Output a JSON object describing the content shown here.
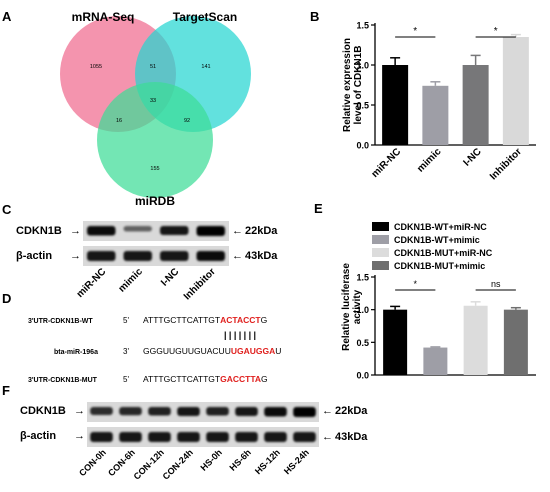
{
  "panels": {
    "A": {
      "label": "A",
      "sets": [
        {
          "name": "mRNA-Seq",
          "color": "#f06b8f"
        },
        {
          "name": "TargetScan",
          "color": "#25d6d1"
        },
        {
          "name": "miRDB",
          "color": "#3ddc97"
        }
      ],
      "counts": {
        "mrna_only": "1055",
        "mrna_target": "51",
        "target_only": "141",
        "all_three": "33",
        "mrna_mirdb": "16",
        "target_mirdb": "92",
        "mirdb_only": "155"
      }
    },
    "B": {
      "label": "B",
      "sig1": "*",
      "sig2": "*",
      "tick_values": [
        "0.0",
        "0.5",
        "1.0",
        "1.5"
      ]
    },
    "C": {
      "label": "C",
      "row1": "CDKN1B",
      "row2": "β-actin",
      "size1": "22kDa",
      "size2": "43kDa",
      "lanes": [
        "miR-NC",
        "mimic",
        "I-NC",
        "Inhibitor"
      ],
      "band_intensity_row1": [
        0.95,
        0.55,
        0.9,
        1.0
      ],
      "band_intensity_row2": [
        0.9,
        0.9,
        0.9,
        0.95
      ]
    },
    "D": {
      "label": "D",
      "wt_name": "3'UTR-CDKN1B-WT",
      "wt_dir": "5'",
      "wt_seq": "ATTTGCTTCATTGT",
      "wt_seed": "ACTACCT",
      "wt_end": "G",
      "pairing": "|||||||",
      "mir_name": "bta-miR-196a",
      "mir_dir": "3'",
      "mir_seq": "GGGUUGUUGUACUU",
      "mir_seed": "UGAUGGA",
      "mir_end": "U",
      "mut_name": "3'UTR-CDKN1B-MUT",
      "mut_dir": "5'",
      "mut_seq": "ATTTGCTTCATTGT",
      "mut_seed": "GACCTTA",
      "mut_end": "G"
    },
    "E": {
      "label": "E",
      "sig1": "*",
      "sig2": "ns",
      "tick_values": [
        "0.0",
        "0.5",
        "1.0",
        "1.5"
      ]
    },
    "F": {
      "label": "F",
      "row1": "CDKN1B",
      "row2": "β-actin",
      "size1": "22kDa",
      "size2": "43kDa",
      "lanes": [
        "CON-0h",
        "CON-6h",
        "CON-12h",
        "CON-24h",
        "HS-0h",
        "HS-6h",
        "HS-12h",
        "HS-24h"
      ],
      "band_intensity_row1": [
        0.8,
        0.82,
        0.85,
        0.9,
        0.85,
        0.9,
        0.95,
        1.0
      ],
      "band_intensity_row2": [
        0.9,
        0.9,
        0.9,
        0.9,
        0.9,
        0.9,
        0.9,
        0.9
      ]
    }
  },
  "chart_data": [
    {
      "type": "bar",
      "title": "",
      "xlabel": "",
      "ylabel": "Relative  expression level of CDKN1B",
      "ylim": [
        0,
        1.5
      ],
      "categories": [
        "miR-NC",
        "mimic",
        "I-NC",
        "Inhibitor"
      ],
      "values": [
        1.0,
        0.74,
        1.0,
        1.35
      ],
      "errors": [
        0.09,
        0.05,
        0.12,
        0.03
      ],
      "colors": [
        "#000000",
        "#9e9ea6",
        "#777779",
        "#d9d9d9"
      ],
      "grid": false
    },
    {
      "type": "bar",
      "title": "",
      "xlabel": "",
      "ylabel": "Relative luciferase activity",
      "ylim": [
        0,
        1.5
      ],
      "categories": [
        "CDKN1B-WT+miR-NC",
        "CDKN1B-WT+mimic",
        "CDKN1B-MUT+miR-NC",
        "CDKN1B-MUT+mimic"
      ],
      "values": [
        1.0,
        0.42,
        1.06,
        1.0
      ],
      "errors": [
        0.05,
        0.01,
        0.06,
        0.03
      ],
      "colors": [
        "#000000",
        "#9e9ea6",
        "#dcdcdc",
        "#6f6f6f"
      ],
      "legend": "top",
      "grid": false
    }
  ]
}
